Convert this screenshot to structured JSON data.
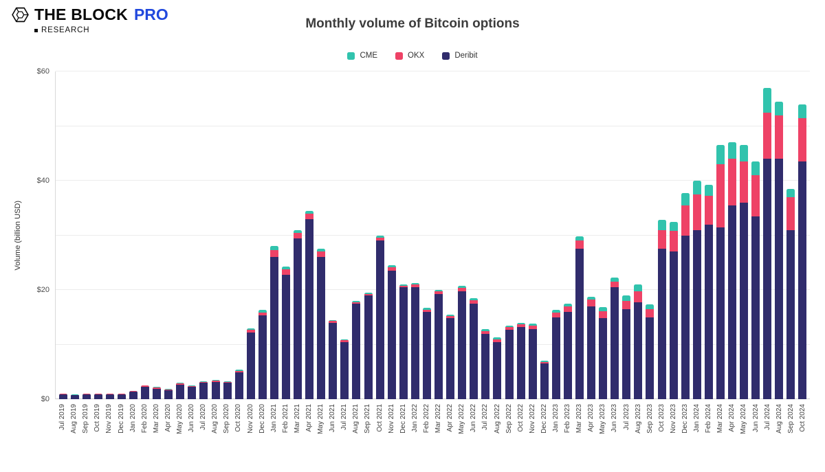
{
  "header": {
    "logo": {
      "brand": "THE BLOCK",
      "pro": "PRO",
      "research": "RESEARCH"
    },
    "title": "Monthly volume of Bitcoin options"
  },
  "legend": [
    {
      "label": "CME",
      "color": "#31c3ad"
    },
    {
      "label": "OKX",
      "color": "#ee4266"
    },
    {
      "label": "Deribit",
      "color": "#302c6c"
    }
  ],
  "chart_data": {
    "type": "bar",
    "stacked": true,
    "title": "Monthly volume of Bitcoin options",
    "xlabel": "",
    "ylabel": "Volume (billion USD)",
    "ylim": [
      0,
      60
    ],
    "gridline_step": 10,
    "grid": true,
    "legend_position": "top-center",
    "yticks": [
      {
        "value": 0,
        "label": "$0"
      },
      {
        "value": 20,
        "label": "$20"
      },
      {
        "value": 40,
        "label": "$40"
      },
      {
        "value": 60,
        "label": "$60"
      }
    ],
    "categories": [
      "Jul 2019",
      "Aug 2019",
      "Sep 2019",
      "Oct 2019",
      "Nov 2019",
      "Dec 2019",
      "Jan 2020",
      "Feb 2020",
      "Mar 2020",
      "Apr 2020",
      "May 2020",
      "Jun 2020",
      "Jul 2020",
      "Aug 2020",
      "Sep 2020",
      "Oct 2020",
      "Nov 2020",
      "Dec 2020",
      "Jan 2021",
      "Feb 2021",
      "Mar 2021",
      "Apr 2021",
      "May 2021",
      "Jun 2021",
      "Jul 2021",
      "Aug 2021",
      "Sep 2021",
      "Oct 2021",
      "Nov 2021",
      "Dec 2021",
      "Jan 2022",
      "Feb 2022",
      "Mar 2022",
      "Apr 2022",
      "May 2022",
      "Jun 2022",
      "Jul 2022",
      "Aug 2022",
      "Sep 2022",
      "Oct 2022",
      "Nov 2022",
      "Dec 2022",
      "Jan 2023",
      "Feb 2023",
      "Mar 2023",
      "Apr 2023",
      "May 2023",
      "Jun 2023",
      "Jul 2023",
      "Aug 2023",
      "Sep 2023",
      "Oct 2023",
      "Nov 2023",
      "Dec 2023",
      "Jan 2024",
      "Feb 2024",
      "Mar 2024",
      "Apr 2024",
      "May 2024",
      "Jun 2024",
      "Jul 2024",
      "Aug 2024",
      "Sep 2024",
      "Oct 2024"
    ],
    "series": [
      {
        "name": "Deribit",
        "color": "#302c6c",
        "values": [
          0.9,
          0.7,
          0.9,
          0.9,
          0.85,
          0.85,
          1.4,
          2.3,
          1.9,
          1.6,
          2.7,
          2.3,
          3.0,
          3.1,
          3.0,
          4.9,
          12.2,
          15.3,
          26.0,
          22.8,
          29.5,
          33.0,
          26.0,
          14.0,
          10.5,
          17.5,
          19.0,
          29.0,
          23.5,
          20.5,
          20.5,
          16.0,
          19.2,
          14.8,
          19.8,
          17.5,
          12.0,
          10.5,
          12.7,
          13.2,
          12.8,
          6.5,
          15.0,
          16.0,
          27.5,
          17.0,
          14.8,
          20.5,
          16.5,
          17.8,
          15.0,
          27.5,
          27.0,
          30.0,
          31.0,
          32.0,
          31.5,
          35.5,
          36.0,
          33.5,
          44.0,
          44.0,
          31.0,
          43.5
        ]
      },
      {
        "name": "OKX",
        "color": "#ee4266",
        "values": [
          0.1,
          0.1,
          0.1,
          0.1,
          0.1,
          0.1,
          0.1,
          0.2,
          0.25,
          0.15,
          0.2,
          0.15,
          0.2,
          0.25,
          0.2,
          0.3,
          0.5,
          0.6,
          1.3,
          1.0,
          1.0,
          1.0,
          1.0,
          0.3,
          0.3,
          0.3,
          0.3,
          0.6,
          0.6,
          0.3,
          0.5,
          0.4,
          0.5,
          0.4,
          0.6,
          0.6,
          0.5,
          0.5,
          0.5,
          0.5,
          0.7,
          0.3,
          0.9,
          1.0,
          1.5,
          1.2,
          1.3,
          1.0,
          1.5,
          2.0,
          1.5,
          3.5,
          3.8,
          5.5,
          6.5,
          5.3,
          11.5,
          8.5,
          7.5,
          7.5,
          8.5,
          8.0,
          6.0,
          8.0
        ]
      },
      {
        "name": "CME",
        "color": "#31c3ad",
        "values": [
          0.05,
          0.05,
          0.05,
          0.05,
          0.05,
          0.05,
          0.05,
          0.05,
          0.1,
          0.1,
          0.1,
          0.1,
          0.1,
          0.15,
          0.1,
          0.15,
          0.3,
          0.4,
          0.7,
          0.5,
          0.5,
          0.5,
          0.5,
          0.2,
          0.2,
          0.2,
          0.2,
          0.4,
          0.4,
          0.2,
          0.3,
          0.3,
          0.3,
          0.3,
          0.4,
          0.4,
          0.3,
          0.3,
          0.3,
          0.3,
          0.3,
          0.2,
          0.4,
          0.5,
          0.8,
          0.6,
          0.7,
          0.8,
          1.0,
          1.2,
          0.8,
          1.8,
          1.7,
          2.3,
          2.5,
          2.0,
          3.5,
          3.0,
          3.0,
          2.5,
          4.5,
          2.5,
          1.5,
          2.5
        ]
      }
    ]
  }
}
